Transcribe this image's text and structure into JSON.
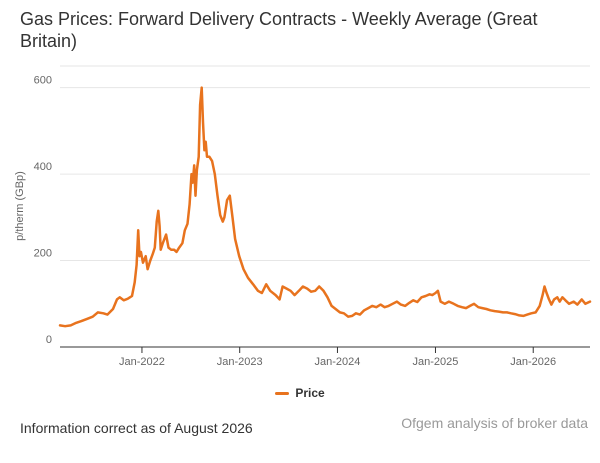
{
  "title": "Gas Prices: Forward Delivery Contracts - Weekly Average (Great Britain)",
  "footer": {
    "left": "Information correct as of August 2026",
    "right": "Ofgem analysis of broker data"
  },
  "colors": {
    "series": "#e8731e",
    "grid": "#e6e6e6",
    "axis_text": "#666666"
  },
  "chart_data": {
    "type": "line",
    "ylabel": "p/therm (GBp)",
    "ylim": [
      0,
      650
    ],
    "yticks": [
      0,
      200,
      400,
      600
    ],
    "x_range": [
      "2021-03-01",
      "2026-08-01"
    ],
    "xticks": [
      {
        "label": "Jan-2022",
        "date": "2022-01-01"
      },
      {
        "label": "Jan-2023",
        "date": "2023-01-01"
      },
      {
        "label": "Jan-2024",
        "date": "2024-01-01"
      },
      {
        "label": "Jan-2025",
        "date": "2025-01-01"
      },
      {
        "label": "Jan-2026",
        "date": "2026-01-01"
      }
    ],
    "grid": true,
    "legend_position": "bottom",
    "series": [
      {
        "name": "Price",
        "points": [
          [
            "2021-03-01",
            50
          ],
          [
            "2021-03-20",
            48
          ],
          [
            "2021-04-10",
            50
          ],
          [
            "2021-05-01",
            56
          ],
          [
            "2021-05-20",
            60
          ],
          [
            "2021-06-10",
            65
          ],
          [
            "2021-07-01",
            70
          ],
          [
            "2021-07-20",
            80
          ],
          [
            "2021-08-10",
            78
          ],
          [
            "2021-08-25",
            75
          ],
          [
            "2021-09-15",
            88
          ],
          [
            "2021-09-30",
            110
          ],
          [
            "2021-10-10",
            115
          ],
          [
            "2021-10-25",
            108
          ],
          [
            "2021-11-10",
            112
          ],
          [
            "2021-11-25",
            118
          ],
          [
            "2021-12-05",
            150
          ],
          [
            "2021-12-12",
            190
          ],
          [
            "2021-12-18",
            270
          ],
          [
            "2021-12-23",
            210
          ],
          [
            "2021-12-28",
            220
          ],
          [
            "2022-01-05",
            195
          ],
          [
            "2022-01-15",
            210
          ],
          [
            "2022-01-22",
            180
          ],
          [
            "2022-02-01",
            200
          ],
          [
            "2022-02-10",
            215
          ],
          [
            "2022-02-18",
            230
          ],
          [
            "2022-02-25",
            290
          ],
          [
            "2022-03-03",
            315
          ],
          [
            "2022-03-08",
            280
          ],
          [
            "2022-03-12",
            225
          ],
          [
            "2022-03-20",
            240
          ],
          [
            "2022-04-01",
            260
          ],
          [
            "2022-04-10",
            230
          ],
          [
            "2022-04-20",
            225
          ],
          [
            "2022-05-01",
            225
          ],
          [
            "2022-05-10",
            220
          ],
          [
            "2022-05-20",
            230
          ],
          [
            "2022-06-01",
            240
          ],
          [
            "2022-06-10",
            270
          ],
          [
            "2022-06-20",
            285
          ],
          [
            "2022-06-28",
            330
          ],
          [
            "2022-07-05",
            400
          ],
          [
            "2022-07-10",
            380
          ],
          [
            "2022-07-15",
            420
          ],
          [
            "2022-07-20",
            350
          ],
          [
            "2022-07-25",
            410
          ],
          [
            "2022-08-01",
            440
          ],
          [
            "2022-08-06",
            560
          ],
          [
            "2022-08-12",
            600
          ],
          [
            "2022-08-17",
            520
          ],
          [
            "2022-08-22",
            455
          ],
          [
            "2022-08-27",
            475
          ],
          [
            "2022-09-01",
            440
          ],
          [
            "2022-09-10",
            440
          ],
          [
            "2022-09-20",
            430
          ],
          [
            "2022-09-30",
            400
          ],
          [
            "2022-10-10",
            350
          ],
          [
            "2022-10-20",
            305
          ],
          [
            "2022-10-30",
            290
          ],
          [
            "2022-11-05",
            300
          ],
          [
            "2022-11-15",
            340
          ],
          [
            "2022-11-25",
            350
          ],
          [
            "2022-12-05",
            300
          ],
          [
            "2022-12-15",
            250
          ],
          [
            "2022-12-30",
            210
          ],
          [
            "2023-01-15",
            180
          ],
          [
            "2023-02-01",
            160
          ],
          [
            "2023-02-20",
            145
          ],
          [
            "2023-03-10",
            130
          ],
          [
            "2023-03-25",
            125
          ],
          [
            "2023-04-10",
            145
          ],
          [
            "2023-04-25",
            130
          ],
          [
            "2023-05-15",
            120
          ],
          [
            "2023-05-30",
            110
          ],
          [
            "2023-06-10",
            140
          ],
          [
            "2023-06-25",
            135
          ],
          [
            "2023-07-10",
            130
          ],
          [
            "2023-07-25",
            120
          ],
          [
            "2023-08-10",
            130
          ],
          [
            "2023-08-25",
            140
          ],
          [
            "2023-09-10",
            135
          ],
          [
            "2023-09-25",
            128
          ],
          [
            "2023-10-10",
            130
          ],
          [
            "2023-10-25",
            140
          ],
          [
            "2023-11-10",
            130
          ],
          [
            "2023-11-25",
            115
          ],
          [
            "2023-12-10",
            95
          ],
          [
            "2023-12-25",
            88
          ],
          [
            "2024-01-10",
            80
          ],
          [
            "2024-01-25",
            78
          ],
          [
            "2024-02-10",
            70
          ],
          [
            "2024-02-25",
            72
          ],
          [
            "2024-03-10",
            78
          ],
          [
            "2024-03-25",
            75
          ],
          [
            "2024-04-10",
            85
          ],
          [
            "2024-04-25",
            90
          ],
          [
            "2024-05-10",
            95
          ],
          [
            "2024-05-25",
            92
          ],
          [
            "2024-06-10",
            98
          ],
          [
            "2024-06-25",
            92
          ],
          [
            "2024-07-10",
            95
          ],
          [
            "2024-07-25",
            100
          ],
          [
            "2024-08-10",
            105
          ],
          [
            "2024-08-25",
            98
          ],
          [
            "2024-09-10",
            95
          ],
          [
            "2024-09-25",
            102
          ],
          [
            "2024-10-10",
            108
          ],
          [
            "2024-10-25",
            104
          ],
          [
            "2024-11-10",
            115
          ],
          [
            "2024-11-25",
            118
          ],
          [
            "2024-12-10",
            122
          ],
          [
            "2024-12-20",
            120
          ],
          [
            "2025-01-01",
            125
          ],
          [
            "2025-01-10",
            130
          ],
          [
            "2025-01-20",
            105
          ],
          [
            "2025-02-05",
            100
          ],
          [
            "2025-02-20",
            105
          ],
          [
            "2025-03-10",
            100
          ],
          [
            "2025-03-25",
            95
          ],
          [
            "2025-04-10",
            92
          ],
          [
            "2025-04-25",
            90
          ],
          [
            "2025-05-10",
            95
          ],
          [
            "2025-05-25",
            100
          ],
          [
            "2025-06-10",
            92
          ],
          [
            "2025-06-25",
            90
          ],
          [
            "2025-07-10",
            88
          ],
          [
            "2025-07-25",
            85
          ],
          [
            "2025-08-10",
            83
          ],
          [
            "2025-08-25",
            82
          ],
          [
            "2025-09-10",
            80
          ],
          [
            "2025-09-25",
            80
          ],
          [
            "2025-10-10",
            78
          ],
          [
            "2025-10-25",
            76
          ],
          [
            "2025-11-10",
            73
          ],
          [
            "2025-11-25",
            72
          ],
          [
            "2025-12-10",
            75
          ],
          [
            "2025-12-25",
            78
          ],
          [
            "2026-01-10",
            80
          ],
          [
            "2026-01-25",
            95
          ],
          [
            "2026-02-05",
            120
          ],
          [
            "2026-02-12",
            140
          ],
          [
            "2026-02-20",
            125
          ],
          [
            "2026-03-01",
            110
          ],
          [
            "2026-03-10",
            98
          ],
          [
            "2026-03-20",
            110
          ],
          [
            "2026-04-01",
            115
          ],
          [
            "2026-04-10",
            105
          ],
          [
            "2026-04-20",
            115
          ],
          [
            "2026-05-01",
            108
          ],
          [
            "2026-05-15",
            100
          ],
          [
            "2026-06-01",
            105
          ],
          [
            "2026-06-15",
            98
          ],
          [
            "2026-07-01",
            110
          ],
          [
            "2026-07-15",
            100
          ],
          [
            "2026-08-01",
            105
          ]
        ]
      }
    ]
  }
}
